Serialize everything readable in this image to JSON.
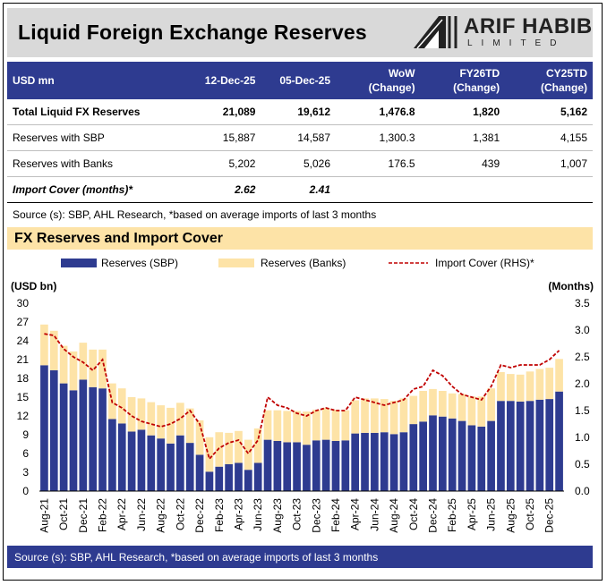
{
  "header": {
    "title": "Liquid Foreign Exchange Reserves",
    "logo_name": "ARIF HABIB",
    "logo_sub": "LIMITED"
  },
  "table": {
    "headers": [
      {
        "line1": "USD mn",
        "line2": ""
      },
      {
        "line1": "12-Dec-25",
        "line2": ""
      },
      {
        "line1": "05-Dec-25",
        "line2": ""
      },
      {
        "line1": "WoW",
        "line2": "(Change)"
      },
      {
        "line1": "FY26TD",
        "line2": "(Change)"
      },
      {
        "line1": "CY25TD",
        "line2": "(Change)"
      }
    ],
    "rows": [
      {
        "label": "Total Liquid FX Reserves",
        "c1": "21,089",
        "c2": "19,612",
        "c3": "1,476.8",
        "c4": "1,820",
        "c5": "5,162"
      },
      {
        "label": "Reserves with SBP",
        "c1": "15,887",
        "c2": "14,587",
        "c3": "1,300.3",
        "c4": "1,381",
        "c5": "4,155"
      },
      {
        "label": "Reserves with Banks",
        "c1": "5,202",
        "c2": "5,026",
        "c3": "176.5",
        "c4": "439",
        "c5": "1,007"
      },
      {
        "label": "Import Cover (months)*",
        "c1": "2.62",
        "c2": "2.41",
        "c3": "",
        "c4": "",
        "c5": ""
      }
    ],
    "source": "Source (s): SBP, AHL Research, *based on average imports of last 3 months"
  },
  "section_title": "FX Reserves and Import Cover",
  "footer_source": "Source (s): SBP, AHL Research, *based on average imports of last 3 months",
  "colors": {
    "navy": "#2e3b90",
    "cream": "#fde3a7",
    "line": "#c00000",
    "grey": "#d9d9d9"
  },
  "chart_data": {
    "type": "bar",
    "stacked": true,
    "legend": [
      "Reserves (SBP)",
      "Reserves (Banks)",
      "Import Cover (RHS)*"
    ],
    "ylabel_left": "(USD bn)",
    "ylabel_right": "(Months)",
    "ylim_left": [
      0,
      30
    ],
    "yticks_left": [
      "0",
      "3",
      "6",
      "9",
      "12",
      "15",
      "18",
      "21",
      "24",
      "27",
      "30"
    ],
    "ylim_right": [
      0,
      3.5
    ],
    "yticks_right": [
      "0.0",
      "0.5",
      "1.0",
      "1.5",
      "2.0",
      "2.5",
      "3.0",
      "3.5"
    ],
    "x_tick_labels": [
      "Aug-21",
      "Oct-21",
      "Dec-21",
      "Feb-22",
      "Apr-22",
      "Jun-22",
      "Aug-22",
      "Oct-22",
      "Dec-22",
      "Feb-23",
      "Apr-23",
      "Jun-23",
      "Aug-23",
      "Oct-23",
      "Dec-23",
      "Feb-24",
      "Apr-24",
      "Jun-24",
      "Aug-24",
      "Oct-24",
      "Dec-24",
      "Feb-25",
      "Apr-25",
      "Jun-25",
      "Aug-25",
      "Oct-25",
      "Dec-25"
    ],
    "series": [
      {
        "name": "Reserves (SBP)",
        "values": [
          20.1,
          19.3,
          17.2,
          16.1,
          17.8,
          16.6,
          16.4,
          11.5,
          10.8,
          9.5,
          9.8,
          8.9,
          8.4,
          7.6,
          8.9,
          7.7,
          5.8,
          3.1,
          3.9,
          4.3,
          4.5,
          3.4,
          4.5,
          8.2,
          8.0,
          7.8,
          7.8,
          7.4,
          8.1,
          8.2,
          8.0,
          8.1,
          9.2,
          9.3,
          9.3,
          9.4,
          9.1,
          9.4,
          10.7,
          11.1,
          12.1,
          11.9,
          11.6,
          11.2,
          10.5,
          10.3,
          11.2,
          14.4,
          14.4,
          14.3,
          14.4,
          14.6,
          14.7,
          15.9
        ]
      },
      {
        "name": "Reserves (Banks)",
        "values": [
          6.5,
          6.3,
          6.0,
          6.2,
          5.9,
          6.0,
          6.2,
          5.7,
          5.6,
          5.5,
          5.0,
          5.3,
          5.3,
          5.7,
          5.2,
          5.5,
          5.5,
          5.5,
          5.5,
          5.0,
          5.1,
          4.8,
          5.5,
          4.7,
          4.9,
          5.0,
          5.0,
          5.3,
          4.9,
          5.1,
          5.0,
          4.8,
          5.3,
          5.5,
          5.5,
          5.3,
          5.3,
          5.4,
          4.5,
          4.9,
          4.2,
          4.1,
          4.0,
          4.3,
          4.6,
          4.8,
          5.2,
          4.6,
          4.3,
          4.3,
          4.7,
          4.9,
          5.0,
          5.2
        ]
      },
      {
        "name": "Import Cover (RHS)*",
        "values": [
          2.93,
          2.9,
          2.65,
          2.5,
          2.4,
          2.25,
          2.45,
          1.65,
          1.55,
          1.4,
          1.3,
          1.25,
          1.2,
          1.25,
          1.35,
          1.5,
          1.25,
          0.6,
          0.8,
          0.9,
          0.95,
          0.7,
          0.95,
          1.75,
          1.6,
          1.55,
          1.45,
          1.4,
          1.5,
          1.55,
          1.5,
          1.5,
          1.75,
          1.7,
          1.65,
          1.6,
          1.65,
          1.7,
          1.9,
          1.95,
          2.25,
          2.15,
          1.95,
          1.8,
          1.75,
          1.7,
          1.95,
          2.35,
          2.3,
          2.35,
          2.35,
          2.35,
          2.45,
          2.62
        ]
      }
    ]
  }
}
